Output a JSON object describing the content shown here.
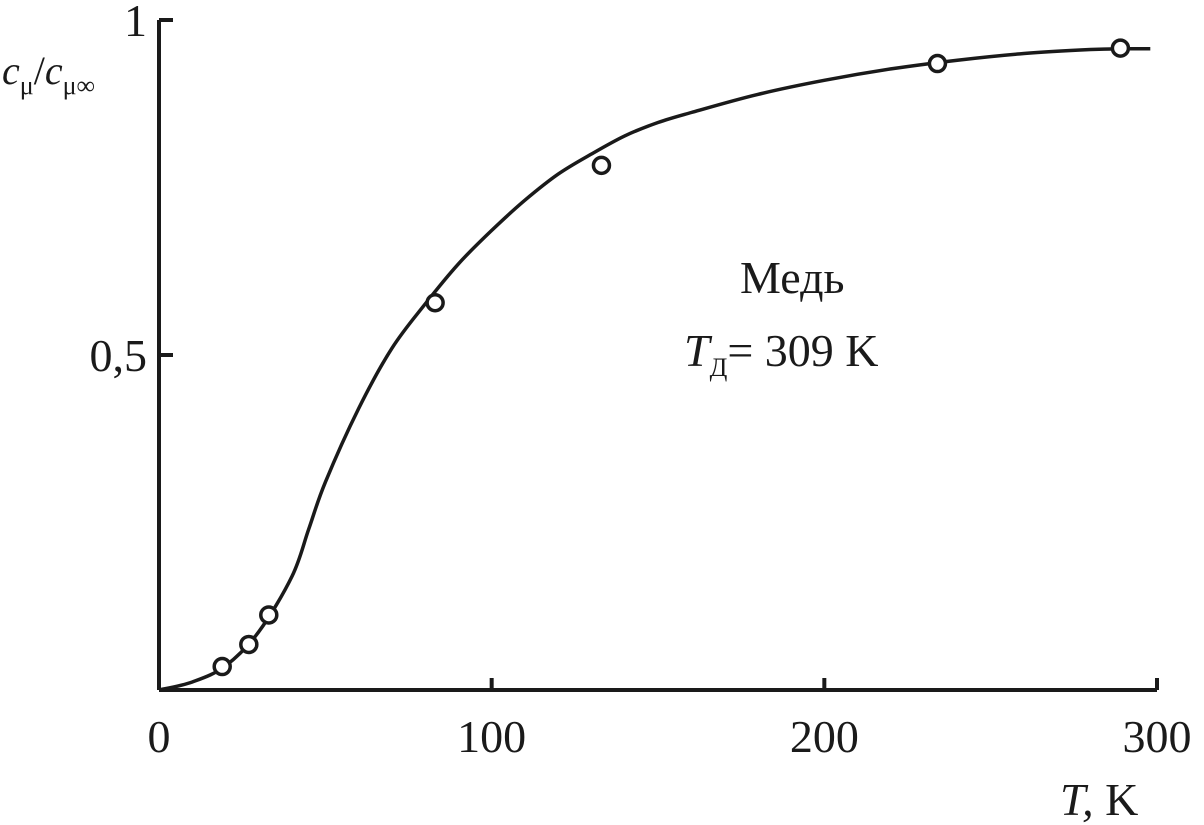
{
  "chart_data": {
    "type": "scatter",
    "ylabel": {
      "c1": "c",
      "sub1": "μ",
      "slash": "/",
      "c2": "c",
      "sub2": "μ∞"
    },
    "xlabel": {
      "var": "T,",
      "unit": " K"
    },
    "annotation": {
      "line1": "Медь",
      "t_var": "T",
      "t_sub": "Д",
      "t_rest": "= 309 K"
    },
    "x_ticks": [
      {
        "value": 0,
        "label": "0"
      },
      {
        "value": 100,
        "label": "100"
      },
      {
        "value": 200,
        "label": "200"
      },
      {
        "value": 300,
        "label": "300"
      }
    ],
    "y_ticks": [
      {
        "value": 0.5,
        "label": "0,5"
      },
      {
        "value": 1,
        "label": "1"
      }
    ],
    "xlim": [
      0,
      300
    ],
    "ylim": [
      0,
      1
    ],
    "grid": false,
    "series": [
      {
        "kind": "points",
        "x": [
          19,
          27,
          33,
          83,
          133,
          234,
          289
        ],
        "y": [
          0.035,
          0.068,
          0.112,
          0.578,
          0.783,
          0.935,
          0.958
        ]
      },
      {
        "kind": "curve",
        "x": [
          0,
          10,
          20,
          30,
          40,
          45,
          50,
          60,
          70,
          80,
          90,
          100,
          110,
          120,
          130,
          140,
          150,
          160,
          180,
          200,
          220,
          240,
          260,
          280,
          290,
          298
        ],
        "y": [
          0,
          0.012,
          0.036,
          0.087,
          0.17,
          0.24,
          0.31,
          0.42,
          0.51,
          0.576,
          0.636,
          0.686,
          0.731,
          0.77,
          0.8,
          0.827,
          0.847,
          0.862,
          0.889,
          0.91,
          0.927,
          0.94,
          0.95,
          0.956,
          0.957,
          0.957
        ]
      }
    ]
  }
}
